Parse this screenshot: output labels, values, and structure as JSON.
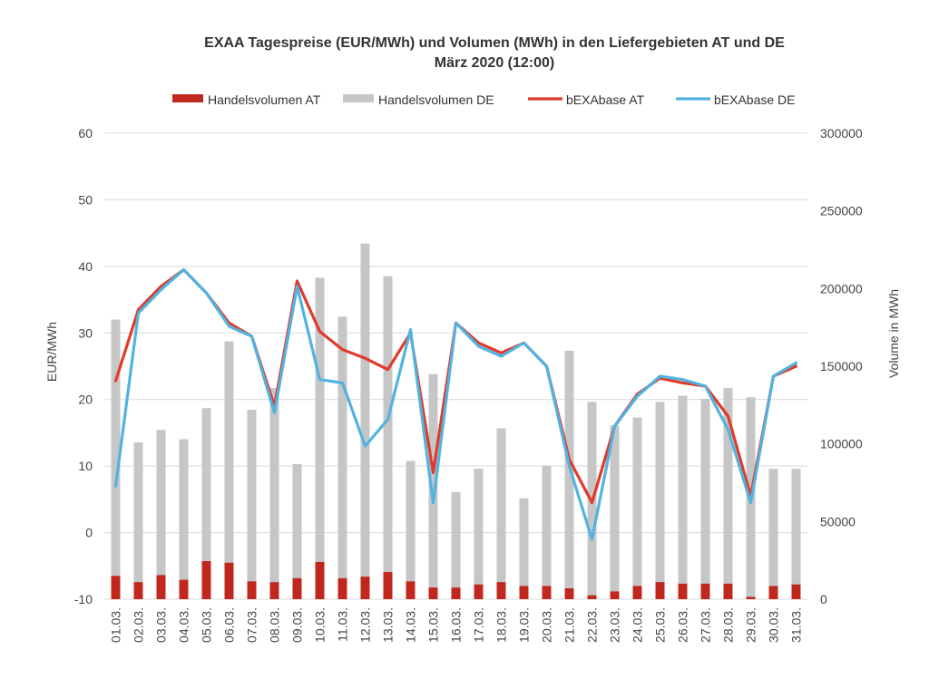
{
  "chart_data": {
    "type": "bar",
    "title": "EXAA Tagespreise  (EUR/MWh) und Volumen  (MWh) in den Liefergebieten  AT und DE",
    "subtitle": "März 2020 (12:00)",
    "ylabel": "EUR/MWh",
    "y2label": "Volume in MWh",
    "ylim": [
      -10,
      60
    ],
    "yticks": [
      -10,
      0,
      10,
      20,
      30,
      40,
      50,
      60
    ],
    "y2lim": [
      0,
      300000
    ],
    "y2ticks": [
      0,
      50000,
      100000,
      150000,
      200000,
      250000,
      300000
    ],
    "categories": [
      "01.03.",
      "02.03.",
      "03.03.",
      "04.03.",
      "05.03.",
      "06.03.",
      "07.03.",
      "08.03.",
      "09.03.",
      "10.03.",
      "11.03.",
      "12.03.",
      "13.03.",
      "14.03.",
      "15.03.",
      "16.03.",
      "17.03.",
      "18.03.",
      "19.03.",
      "20.03.",
      "21.03.",
      "22.03.",
      "23.03.",
      "24.03.",
      "25.03.",
      "26.03.",
      "27.03.",
      "28.03.",
      "29.03.",
      "30.03.",
      "31.03."
    ],
    "legend": "top",
    "colors": {
      "at_volume": "#c0271e",
      "de_volume": "#c6c6c6",
      "at_price": "#e03a2a",
      "de_price": "#52b3e0"
    },
    "series": [
      {
        "name": "Handelsvolumen AT",
        "kind": "bar",
        "axis": "right",
        "values": [
          15000,
          11000,
          15500,
          12500,
          24500,
          23500,
          11500,
          11000,
          13500,
          24000,
          13500,
          14500,
          17500,
          11500,
          7500,
          7500,
          9500,
          11000,
          8500,
          8500,
          7000,
          2500,
          5000,
          8500,
          11000,
          10000,
          10000,
          10000,
          1500,
          8500,
          9500
        ]
      },
      {
        "name": "Handelsvolumen DE",
        "kind": "bar",
        "axis": "right",
        "values": [
          180000,
          101000,
          109000,
          103000,
          123000,
          166000,
          122000,
          136000,
          87000,
          207000,
          182000,
          229000,
          208000,
          89000,
          145000,
          69000,
          84000,
          110000,
          65000,
          86000,
          160000,
          127000,
          112000,
          117000,
          127000,
          131000,
          129000,
          136000,
          130000,
          84000,
          84000
        ]
      },
      {
        "name": "bEXAbase AT",
        "kind": "line",
        "axis": "left",
        "values": [
          22.8,
          33.5,
          37.0,
          39.5,
          36.0,
          31.5,
          29.5,
          19.0,
          37.8,
          30.2,
          27.5,
          26.2,
          24.5,
          30.0,
          9.0,
          31.5,
          28.5,
          27.0,
          28.5,
          25.0,
          11.0,
          4.5,
          16.0,
          20.8,
          23.2,
          22.5,
          22.0,
          17.5,
          5.5,
          23.5,
          25.0
        ]
      },
      {
        "name": "bEXAbase DE",
        "kind": "line",
        "axis": "left",
        "values": [
          7.0,
          33.0,
          36.5,
          39.5,
          36.0,
          31.0,
          29.5,
          18.0,
          37.0,
          23.0,
          22.5,
          13.0,
          17.0,
          30.5,
          4.5,
          31.5,
          28.0,
          26.5,
          28.5,
          25.0,
          10.0,
          -1.0,
          16.0,
          20.5,
          23.5,
          23.0,
          22.0,
          15.5,
          4.5,
          23.5,
          25.5
        ]
      }
    ]
  }
}
